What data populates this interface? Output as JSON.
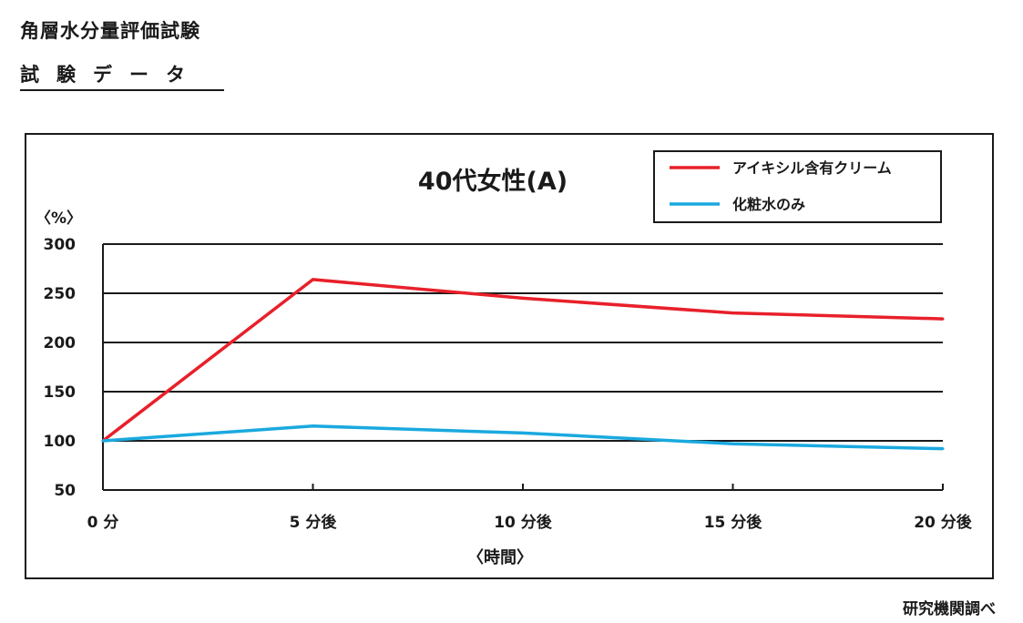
{
  "header": {
    "page_title": "角層水分量評価試験",
    "section_title": "試験データ"
  },
  "footer": {
    "source_note": "研究機関調べ"
  },
  "colors": {
    "cream_series": "#e8202a",
    "water_series": "#1aa9df",
    "axis": "#1a1a1a",
    "grid": "#1a1a1a"
  },
  "chart_data": {
    "type": "line",
    "title": "40代女性(A)",
    "ylabel": "〈%〉",
    "xlabel": "〈時間〉",
    "categories": [
      "0 分",
      "5 分後",
      "10 分後",
      "15 分後",
      "20 分後"
    ],
    "ylim": [
      50,
      300
    ],
    "yticks": [
      50,
      100,
      150,
      200,
      250,
      300
    ],
    "grid": true,
    "legend_position": "top-right",
    "series": [
      {
        "name": "アイキシル含有クリーム",
        "values": [
          100,
          264,
          245,
          230,
          224
        ],
        "color": "#e8202a"
      },
      {
        "name": "化粧水のみ",
        "values": [
          100,
          115,
          108,
          97,
          92
        ],
        "color": "#1aa9df"
      }
    ]
  }
}
